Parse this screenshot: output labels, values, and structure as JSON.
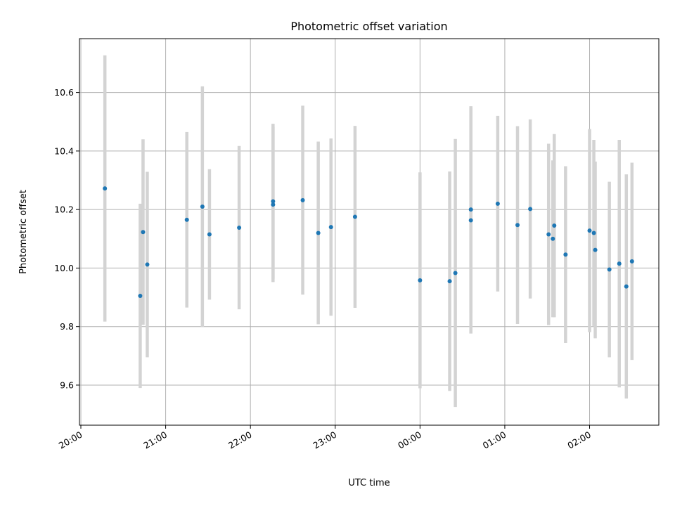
{
  "chart_data": {
    "type": "scatter",
    "title": "Photometric offset variation",
    "xlabel": "UTC time",
    "ylabel": "Photometric offset",
    "x_ticks": [
      "20:00",
      "21:00",
      "22:00",
      "23:00",
      "00:00",
      "01:00",
      "02:00"
    ],
    "y_ticks": [
      "9.6",
      "9.8",
      "10.0",
      "10.2",
      "10.4",
      "10.6"
    ],
    "x_tick_minutes": [
      0,
      60,
      120,
      180,
      240,
      300,
      360
    ],
    "y_tick_values": [
      9.6,
      9.8,
      10.0,
      10.2,
      10.4,
      10.6
    ],
    "xlim_minutes": [
      -1,
      409
    ],
    "ylim": [
      9.463,
      10.784
    ],
    "grid": true,
    "colors": {
      "point": "#1f77b4",
      "errorbar": "#d3d3d3",
      "grid": "#b0b0b0"
    },
    "points": [
      {
        "time": "20:17",
        "y": 10.272,
        "err": 0.455
      },
      {
        "time": "20:42",
        "y": 9.905,
        "err": 0.315
      },
      {
        "time": "20:44",
        "y": 10.123,
        "err": 0.317
      },
      {
        "time": "20:47",
        "y": 10.012,
        "err": 0.317
      },
      {
        "time": "21:15",
        "y": 10.165,
        "err": 0.3
      },
      {
        "time": "21:26",
        "y": 10.21,
        "err": 0.411
      },
      {
        "time": "21:31",
        "y": 10.115,
        "err": 0.223
      },
      {
        "time": "21:52",
        "y": 10.138,
        "err": 0.279
      },
      {
        "time": "22:16",
        "y": 10.217,
        "err": 0.265
      },
      {
        "time": "22:16",
        "y": 10.228,
        "err": 0.265
      },
      {
        "time": "22:37",
        "y": 10.232,
        "err": 0.323
      },
      {
        "time": "22:48",
        "y": 10.12,
        "err": 0.312
      },
      {
        "time": "22:57",
        "y": 10.14,
        "err": 0.303
      },
      {
        "time": "23:14",
        "y": 10.175,
        "err": 0.311
      },
      {
        "time": "00:00",
        "y": 9.958,
        "err": 0.369
      },
      {
        "time": "00:21",
        "y": 9.955,
        "err": 0.375
      },
      {
        "time": "00:25",
        "y": 9.983,
        "err": 0.458
      },
      {
        "time": "00:36",
        "y": 10.163,
        "err": 0.387
      },
      {
        "time": "00:36",
        "y": 10.2,
        "err": 0.353
      },
      {
        "time": "00:55",
        "y": 10.22,
        "err": 0.3
      },
      {
        "time": "01:09",
        "y": 10.147,
        "err": 0.338
      },
      {
        "time": "01:18",
        "y": 10.202,
        "err": 0.306
      },
      {
        "time": "01:31",
        "y": 10.115,
        "err": 0.31
      },
      {
        "time": "01:34",
        "y": 10.1,
        "err": 0.268
      },
      {
        "time": "01:35",
        "y": 10.145,
        "err": 0.313
      },
      {
        "time": "01:43",
        "y": 10.046,
        "err": 0.302
      },
      {
        "time": "02:00",
        "y": 10.128,
        "err": 0.347
      },
      {
        "time": "02:03",
        "y": 10.12,
        "err": 0.318
      },
      {
        "time": "02:04",
        "y": 10.062,
        "err": 0.302
      },
      {
        "time": "02:14",
        "y": 9.995,
        "err": 0.3
      },
      {
        "time": "02:21",
        "y": 10.015,
        "err": 0.423
      },
      {
        "time": "02:26",
        "y": 9.937,
        "err": 0.383
      },
      {
        "time": "02:30",
        "y": 10.023,
        "err": 0.337
      }
    ]
  }
}
